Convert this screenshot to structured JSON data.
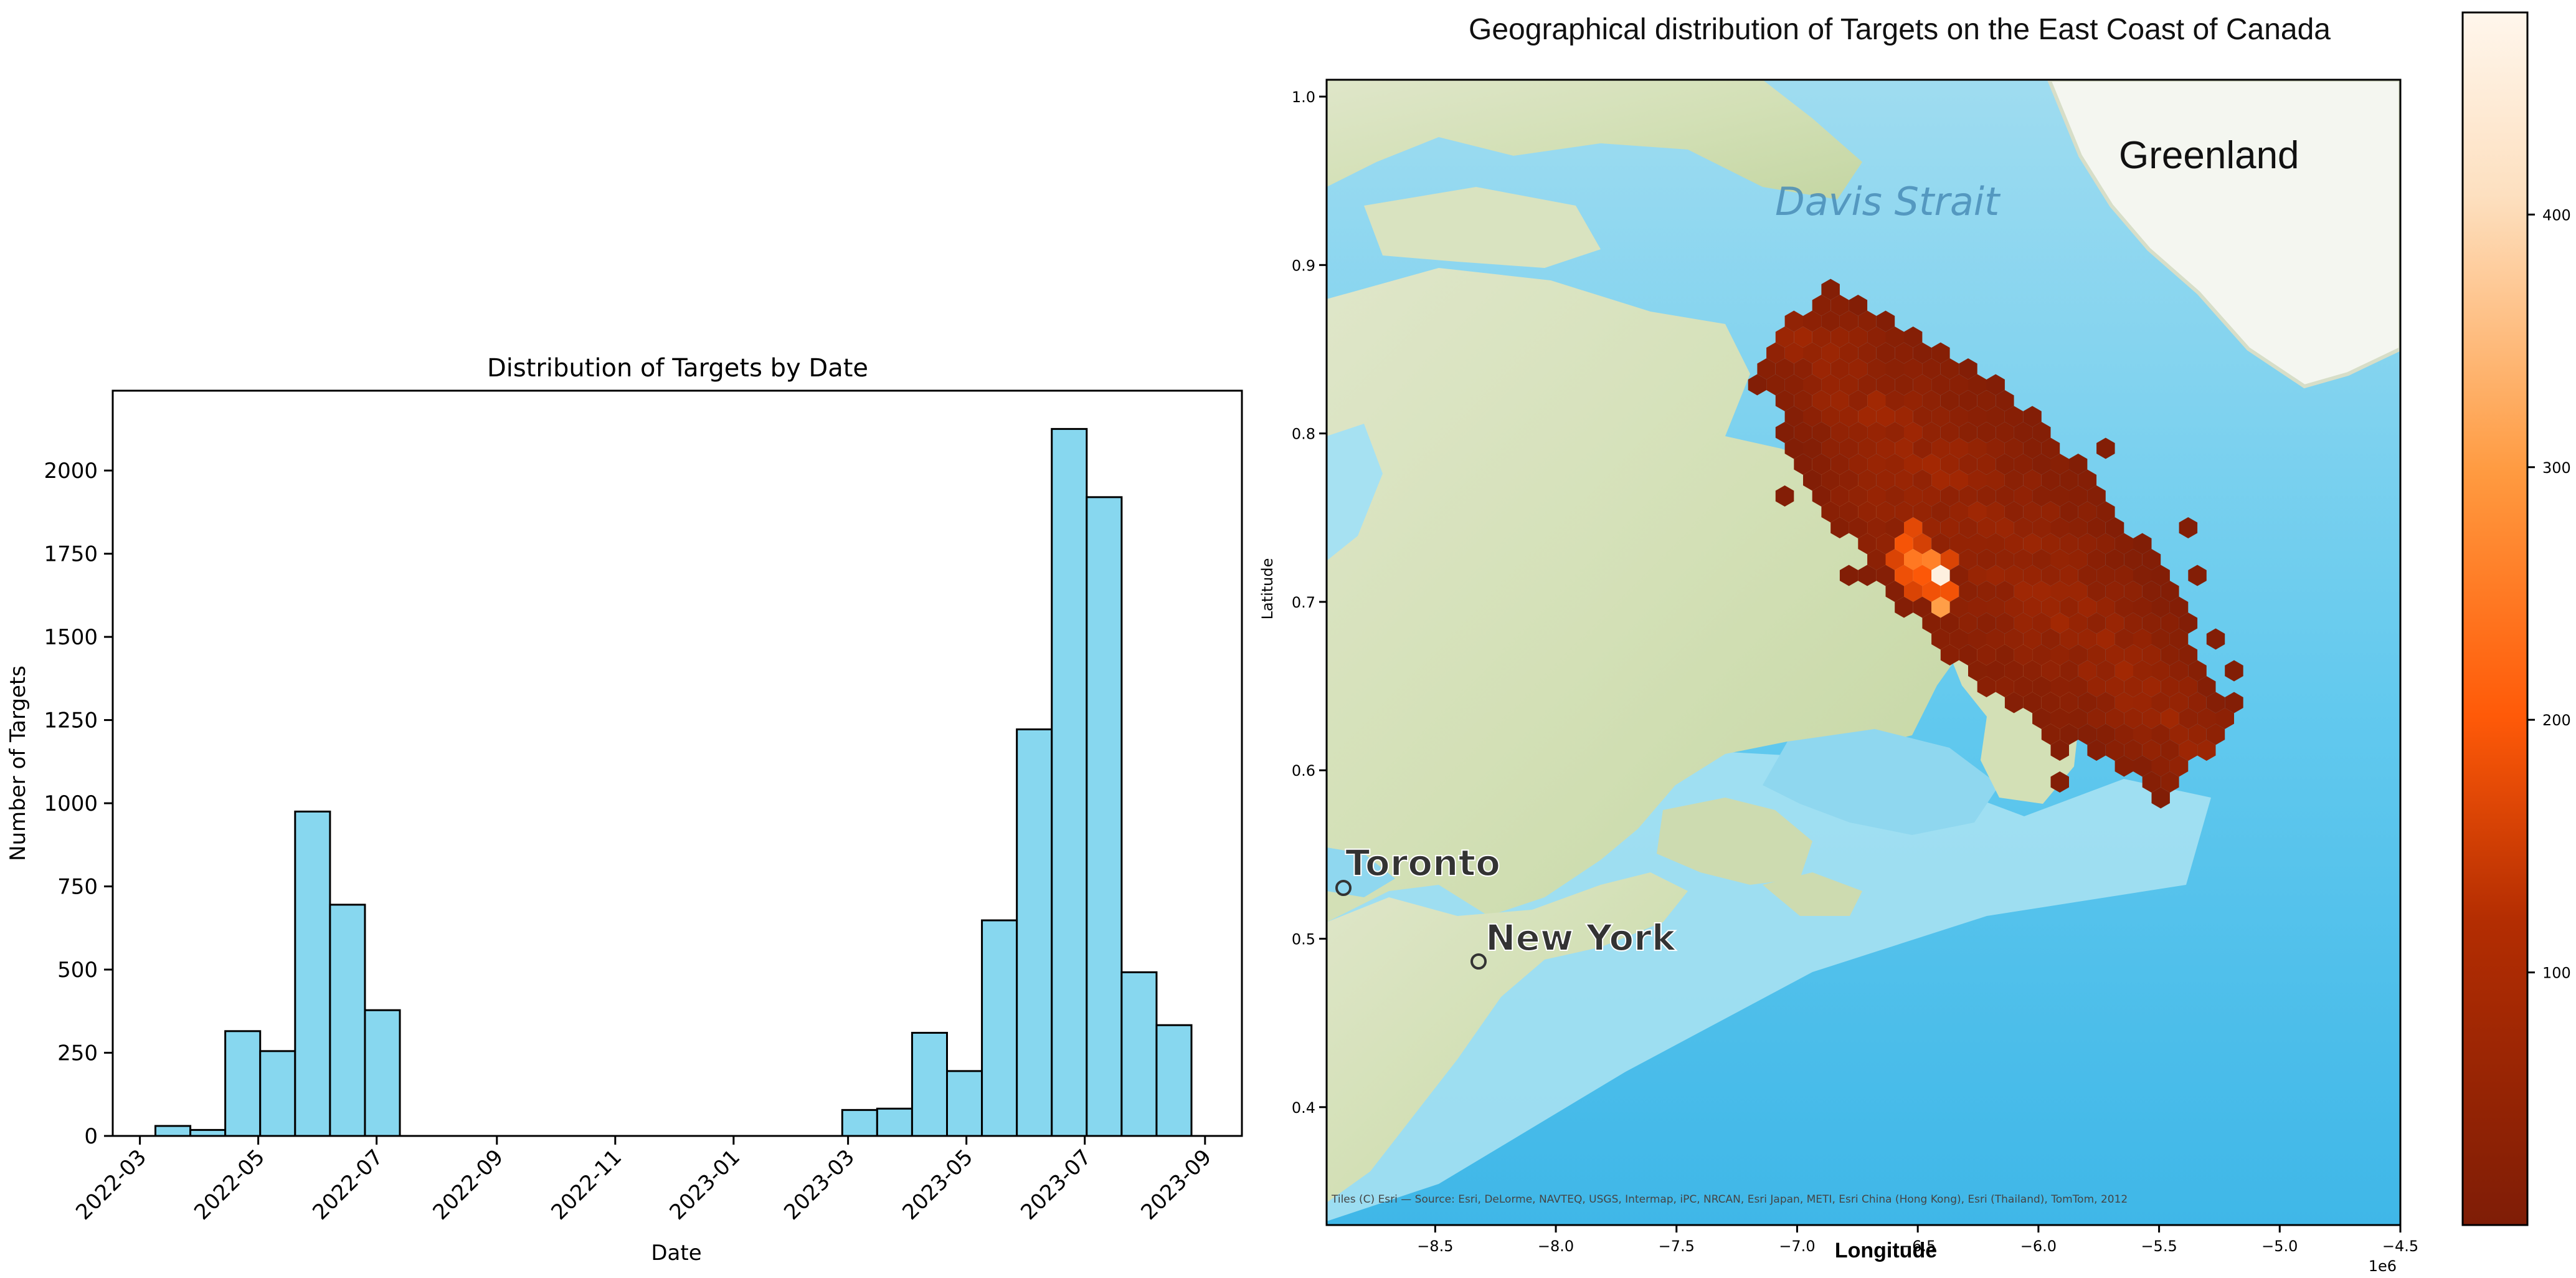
{
  "chart_data": [
    {
      "type": "bar",
      "title": "Distribution of Targets by Date",
      "xlabel": "Date",
      "ylabel": "Number of Targets",
      "ylim": [
        0,
        2240
      ],
      "x_range": [
        "2022-02-15",
        "2023-09-20"
      ],
      "x_ticks": [
        "2022-03",
        "2022-05",
        "2022-07",
        "2022-09",
        "2022-11",
        "2023-01",
        "2023-03",
        "2023-05",
        "2023-07",
        "2023-09"
      ],
      "y_ticks": [
        0,
        250,
        500,
        750,
        1000,
        1250,
        1500,
        1750,
        2000
      ],
      "bar_color": "#87d7ef",
      "bar_edge_color": "#000000",
      "grid": false,
      "bins": [
        {
          "start": "2022-03-09",
          "end": "2022-03-27",
          "value": 30
        },
        {
          "start": "2022-03-27",
          "end": "2022-04-14",
          "value": 18
        },
        {
          "start": "2022-04-14",
          "end": "2022-05-02",
          "value": 315
        },
        {
          "start": "2022-05-02",
          "end": "2022-05-20",
          "value": 255
        },
        {
          "start": "2022-05-20",
          "end": "2022-06-07",
          "value": 975
        },
        {
          "start": "2022-06-07",
          "end": "2022-06-25",
          "value": 695
        },
        {
          "start": "2022-06-25",
          "end": "2022-07-13",
          "value": 378
        },
        {
          "start": "2023-02-26",
          "end": "2023-03-16",
          "value": 78
        },
        {
          "start": "2023-03-16",
          "end": "2023-04-03",
          "value": 82
        },
        {
          "start": "2023-04-03",
          "end": "2023-04-21",
          "value": 310
        },
        {
          "start": "2023-04-21",
          "end": "2023-05-09",
          "value": 195
        },
        {
          "start": "2023-05-09",
          "end": "2023-05-27",
          "value": 648
        },
        {
          "start": "2023-05-27",
          "end": "2023-06-14",
          "value": 1222
        },
        {
          "start": "2023-06-14",
          "end": "2023-07-02",
          "value": 2125
        },
        {
          "start": "2023-07-02",
          "end": "2023-07-20",
          "value": 1920
        },
        {
          "start": "2023-07-20",
          "end": "2023-08-07",
          "value": 492
        },
        {
          "start": "2023-08-07",
          "end": "2023-08-25",
          "value": 333
        }
      ]
    },
    {
      "type": "heatmap",
      "title": "Geographical distribution of Targets on the East Coast of Canada",
      "xlabel": "Longitude",
      "ylabel": "Latitude",
      "xlim": [
        -8.95,
        -4.5
      ],
      "ylim": [
        0.33,
        1.01
      ],
      "x_ticks": [
        -8.5,
        -8.0,
        -7.5,
        -7.0,
        -6.5,
        -6.0,
        -5.5,
        -5.0,
        -4.5
      ],
      "x_tick_labels": [
        "−8.5",
        "−8.0",
        "−7.5",
        "−7.0",
        "−6.5",
        "−6.0",
        "−5.5",
        "−5.0",
        "−4.5"
      ],
      "x_offset_label": "1e6",
      "y_ticks": [
        0.4,
        0.5,
        0.6,
        0.7,
        0.8,
        0.9,
        1.0
      ],
      "colorbar": {
        "min": 0,
        "max": 480,
        "ticks": [
          100,
          200,
          300,
          400
        ],
        "colors": [
          "#7f1d06",
          "#b32d02",
          "#ff5a08",
          "#ff9a40",
          "#fde0c0",
          "#fff6ec"
        ]
      },
      "map_labels": [
        {
          "text": "Greenland"
        },
        {
          "text": "Davis Strait"
        },
        {
          "text": "Toronto"
        },
        {
          "text": "New York"
        }
      ],
      "attribution": "Tiles (C) Esri — Source: Esri, DeLorme, NAVTEQ, USGS, Intermap, iPC, NRCAN, Esri Japan, METI, Esri China (Hong Kong), Esri (Thailand), TomTom, 2012",
      "hex_regions": [
        {
          "center": [
            -6.9,
            0.84
          ],
          "spread": [
            0.22,
            0.04
          ],
          "value": 20
        },
        {
          "center": [
            -6.55,
            0.77
          ],
          "spread": [
            0.35,
            0.05
          ],
          "value": 60
        },
        {
          "center": [
            -6.0,
            0.69
          ],
          "spread": [
            0.45,
            0.07
          ],
          "value": 40
        },
        {
          "center": [
            -6.4,
            0.71
          ],
          "spread": [
            0.05,
            0.02
          ],
          "value": 470
        },
        {
          "center": [
            -6.5,
            0.725
          ],
          "spread": [
            0.1,
            0.02
          ],
          "value": 320
        }
      ]
    }
  ]
}
